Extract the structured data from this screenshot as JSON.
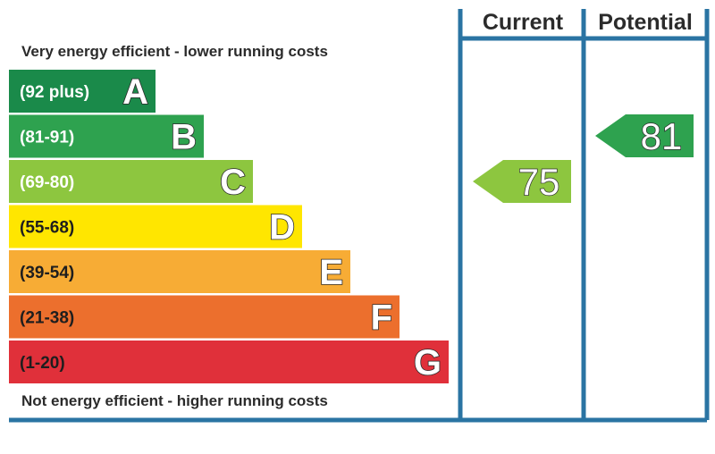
{
  "chart_data": {
    "type": "bar",
    "top_caption": "Very energy efficient - lower running costs",
    "bottom_caption": "Not energy efficient - higher running costs",
    "columns": {
      "current": "Current",
      "potential": "Potential"
    },
    "bands": [
      {
        "letter": "A",
        "range": "(92 plus)",
        "color": "#1a8a4a"
      },
      {
        "letter": "B",
        "range": "(81-91)",
        "color": "#2ea24f"
      },
      {
        "letter": "C",
        "range": "(69-80)",
        "color": "#8dc63f"
      },
      {
        "letter": "D",
        "range": "(55-68)",
        "color": "#ffe600"
      },
      {
        "letter": "E",
        "range": "(39-54)",
        "color": "#f7ac35"
      },
      {
        "letter": "F",
        "range": "(21-38)",
        "color": "#ec6f2d"
      },
      {
        "letter": "G",
        "range": "(1-20)",
        "color": "#e0303a"
      }
    ],
    "current": {
      "value": 75,
      "band": "C"
    },
    "potential": {
      "value": 81,
      "band": "B"
    },
    "frame_color": "#2a74a3"
  }
}
